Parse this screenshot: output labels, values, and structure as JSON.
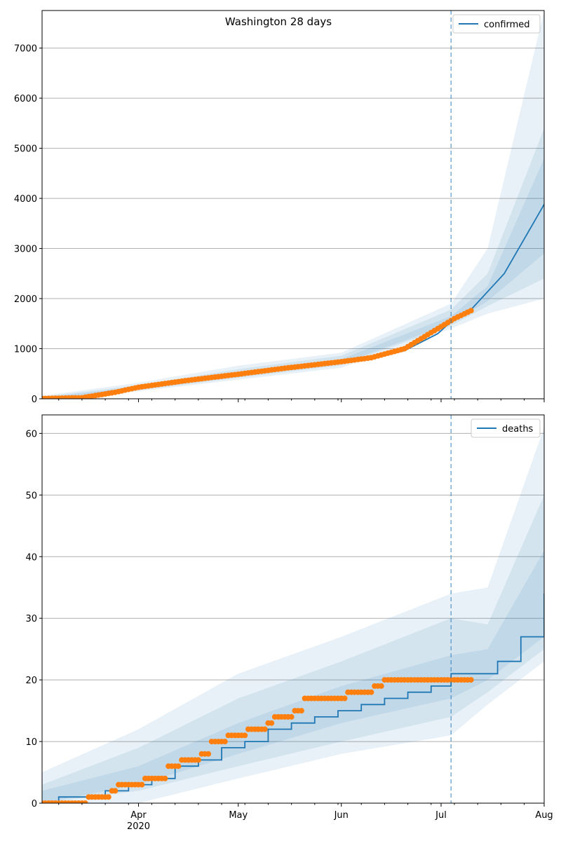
{
  "figure": {
    "title": "Washington 28 days"
  },
  "chart_data": [
    {
      "type": "line",
      "title": "Washington 28 days",
      "x_axis": {
        "type": "date",
        "range": [
          "2020-03-03",
          "2020-08-01"
        ],
        "tick_labels": [
          "Apr",
          "May",
          "Jun",
          "Jul",
          "Aug"
        ],
        "year_label": "2020"
      },
      "ylim": [
        0,
        7750
      ],
      "yticks": [
        0,
        1000,
        2000,
        3000,
        4000,
        5000,
        6000,
        7000
      ],
      "grid": "horizontal",
      "legend": {
        "placement": "top-right",
        "entries": [
          "confirmed"
        ]
      },
      "forecast_start": "2020-07-04",
      "series": [
        {
          "name": "confirmed",
          "kind": "model median",
          "color": "#1f77b4",
          "x": [
            "2020-03-03",
            "2020-03-15",
            "2020-03-25",
            "2020-04-01",
            "2020-04-15",
            "2020-05-01",
            "2020-05-15",
            "2020-06-01",
            "2020-06-10",
            "2020-06-20",
            "2020-06-30",
            "2020-07-04",
            "2020-07-10",
            "2020-07-20",
            "2020-08-01"
          ],
          "y": [
            5,
            30,
            130,
            210,
            340,
            480,
            600,
            730,
            800,
            960,
            1300,
            1540,
            1780,
            2500,
            3880
          ]
        },
        {
          "name": "observed",
          "kind": "scatter",
          "color": "#ff7f0e",
          "x": [
            "2020-03-03",
            "2020-03-15",
            "2020-03-25",
            "2020-04-01",
            "2020-04-15",
            "2020-05-01",
            "2020-05-15",
            "2020-06-01",
            "2020-06-10",
            "2020-06-20",
            "2020-06-30",
            "2020-07-05",
            "2020-07-10"
          ],
          "y": [
            5,
            20,
            130,
            230,
            360,
            490,
            610,
            740,
            820,
            1000,
            1400,
            1600,
            1760
          ]
        }
      ],
      "bands": [
        {
          "x": [
            "2020-03-03",
            "2020-04-01",
            "2020-05-01",
            "2020-06-01",
            "2020-07-04",
            "2020-07-15",
            "2020-08-01"
          ],
          "lower": [
            0,
            150,
            380,
            620,
            1400,
            1700,
            2000
          ],
          "upper": [
            60,
            320,
            660,
            920,
            1900,
            3000,
            7750
          ]
        },
        {
          "x": [
            "2020-03-03",
            "2020-04-01",
            "2020-05-01",
            "2020-06-01",
            "2020-07-04",
            "2020-07-15",
            "2020-08-01"
          ],
          "lower": [
            0,
            170,
            420,
            670,
            1460,
            1850,
            2400
          ],
          "upper": [
            40,
            270,
            590,
            860,
            1780,
            2500,
            5400
          ]
        },
        {
          "x": [
            "2020-03-03",
            "2020-04-01",
            "2020-05-01",
            "2020-06-01",
            "2020-07-04",
            "2020-07-15",
            "2020-08-01"
          ],
          "lower": [
            0,
            190,
            450,
            700,
            1500,
            1950,
            2900
          ],
          "upper": [
            20,
            240,
            530,
            790,
            1650,
            2250,
            4800
          ]
        }
      ]
    },
    {
      "type": "line",
      "title": "",
      "x_axis": {
        "type": "date",
        "range": [
          "2020-03-03",
          "2020-08-01"
        ],
        "tick_labels": [
          "Apr",
          "May",
          "Jun",
          "Jul",
          "Aug"
        ],
        "year_label": "2020"
      },
      "ylim": [
        0,
        63
      ],
      "yticks": [
        0,
        10,
        20,
        30,
        40,
        50,
        60
      ],
      "grid": "horizontal",
      "legend": {
        "placement": "top-right",
        "entries": [
          "deaths"
        ]
      },
      "forecast_start": "2020-07-04",
      "series": [
        {
          "name": "deaths",
          "kind": "model median",
          "color": "#1f77b4",
          "step": true,
          "x": [
            "2020-03-03",
            "2020-03-08",
            "2020-03-15",
            "2020-03-22",
            "2020-03-29",
            "2020-04-05",
            "2020-04-12",
            "2020-04-19",
            "2020-04-26",
            "2020-05-03",
            "2020-05-10",
            "2020-05-17",
            "2020-05-24",
            "2020-05-31",
            "2020-06-07",
            "2020-06-14",
            "2020-06-21",
            "2020-06-28",
            "2020-07-04",
            "2020-07-11",
            "2020-07-18",
            "2020-07-25",
            "2020-08-01"
          ],
          "y": [
            0,
            1,
            1,
            2,
            3,
            4,
            6,
            7,
            9,
            10,
            12,
            13,
            14,
            15,
            16,
            17,
            18,
            19,
            21,
            21,
            23,
            27,
            34
          ]
        },
        {
          "name": "observed",
          "kind": "scatter",
          "color": "#ff7f0e",
          "step": true,
          "x": [
            "2020-03-03",
            "2020-03-17",
            "2020-03-24",
            "2020-03-26",
            "2020-04-03",
            "2020-04-10",
            "2020-04-14",
            "2020-04-20",
            "2020-04-23",
            "2020-04-28",
            "2020-05-04",
            "2020-05-10",
            "2020-05-12",
            "2020-05-18",
            "2020-05-21",
            "2020-05-23",
            "2020-05-25",
            "2020-05-27",
            "2020-06-03",
            "2020-06-11",
            "2020-06-14",
            "2020-06-16",
            "2020-07-04",
            "2020-07-10"
          ],
          "y": [
            0,
            1,
            2,
            3,
            4,
            6,
            7,
            8,
            10,
            11,
            12,
            13,
            14,
            15,
            17,
            17,
            17,
            17,
            18,
            19,
            20,
            20,
            20,
            20
          ]
        }
      ],
      "bands": [
        {
          "x": [
            "2020-03-03",
            "2020-04-01",
            "2020-05-01",
            "2020-06-01",
            "2020-07-04",
            "2020-07-15",
            "2020-08-01"
          ],
          "lower": [
            0,
            0,
            4,
            8,
            11,
            16,
            23
          ],
          "upper": [
            5,
            12,
            21,
            27,
            34,
            35,
            61
          ]
        },
        {
          "x": [
            "2020-03-03",
            "2020-04-01",
            "2020-05-01",
            "2020-06-01",
            "2020-07-04",
            "2020-07-15",
            "2020-08-01"
          ],
          "lower": [
            0,
            2,
            6,
            10,
            14,
            18,
            25
          ],
          "upper": [
            3,
            9,
            17,
            23,
            30,
            29,
            50
          ]
        },
        {
          "x": [
            "2020-03-03",
            "2020-04-01",
            "2020-05-01",
            "2020-06-01",
            "2020-07-04",
            "2020-07-15",
            "2020-08-01"
          ],
          "lower": [
            0,
            3,
            8,
            13,
            17,
            20,
            27
          ],
          "upper": [
            2,
            6,
            13,
            19,
            24,
            25,
            41
          ]
        }
      ]
    }
  ]
}
